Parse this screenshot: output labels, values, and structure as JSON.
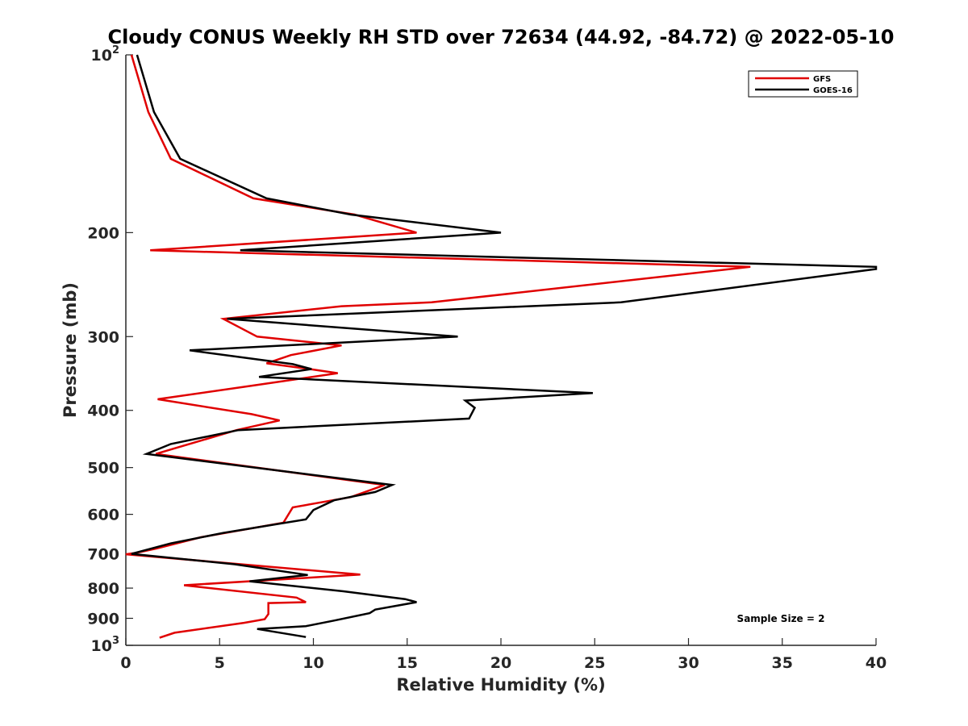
{
  "chart_data": {
    "type": "line",
    "title": "Cloudy CONUS Weekly RH STD over 72634 (44.92, -84.72) @ 2022-05-10",
    "xlabel": "Relative Humidity (%)",
    "ylabel": "Pressure (mb)",
    "xlim": [
      0,
      40
    ],
    "ylim": [
      100,
      1000
    ],
    "y_scale": "log",
    "y_reversed": true,
    "grid": false,
    "legend_position": "top-right",
    "x_ticks": [
      0,
      5,
      10,
      15,
      20,
      25,
      30,
      35,
      40
    ],
    "x_tick_labels": [
      "0",
      "5",
      "10",
      "15",
      "20",
      "25",
      "30",
      "35",
      "40"
    ],
    "y_ticks": [
      100,
      200,
      300,
      400,
      500,
      600,
      700,
      800,
      900,
      1000
    ],
    "y_tick_labels": [
      {
        "base": "10",
        "exp": "2"
      },
      {
        "base": "200",
        "exp": ""
      },
      {
        "base": "300",
        "exp": ""
      },
      {
        "base": "400",
        "exp": ""
      },
      {
        "base": "500",
        "exp": ""
      },
      {
        "base": "600",
        "exp": ""
      },
      {
        "base": "700",
        "exp": ""
      },
      {
        "base": "800",
        "exp": ""
      },
      {
        "base": "900",
        "exp": ""
      },
      {
        "base": "10",
        "exp": "3"
      }
    ],
    "annotation": "Sample Size = 2",
    "series": [
      {
        "name": "GFS",
        "color": "#e00000",
        "points": [
          [
            0.3,
            100
          ],
          [
            1.2,
            125
          ],
          [
            2.4,
            150
          ],
          [
            6.8,
            175
          ],
          [
            12.2,
            186.4
          ],
          [
            15.5,
            200
          ],
          [
            1.3,
            214.3
          ],
          [
            33.3,
            228.6
          ],
          [
            16.3,
            262.5
          ],
          [
            11.5,
            266.5
          ],
          [
            5.2,
            280
          ],
          [
            7.0,
            300
          ],
          [
            11.5,
            310.5
          ],
          [
            8.8,
            322.5
          ],
          [
            7.5,
            333
          ],
          [
            9.8,
            340.5
          ],
          [
            11.3,
            346
          ],
          [
            6.8,
            363
          ],
          [
            1.7,
            383
          ],
          [
            6.7,
            406
          ],
          [
            8.2,
            416
          ],
          [
            5.9,
            432
          ],
          [
            1.6,
            474
          ],
          [
            13.8,
            535
          ],
          [
            12.0,
            561
          ],
          [
            8.9,
            584
          ],
          [
            8.4,
            620
          ],
          [
            4.0,
            656
          ],
          [
            1.6,
            686
          ],
          [
            0.6,
            697
          ],
          [
            0,
            701
          ],
          [
            12.5,
            759
          ],
          [
            3.1,
            791
          ],
          [
            9.1,
            830
          ],
          [
            9.6,
            845
          ],
          [
            7.6,
            848
          ],
          [
            7.6,
            885
          ],
          [
            7.4,
            903
          ],
          [
            6.3,
            916
          ],
          [
            2.6,
            952
          ],
          [
            1.8,
            971
          ]
        ]
      },
      {
        "name": "GOES-16",
        "color": "#000000",
        "points": [
          [
            0.6,
            100
          ],
          [
            1.5,
            125
          ],
          [
            2.9,
            150
          ],
          [
            7.5,
            175
          ],
          [
            12.0,
            186.4
          ],
          [
            20.0,
            200
          ],
          [
            6.1,
            214.3
          ],
          [
            40.0,
            228.6
          ],
          [
            40.0,
            230.5
          ],
          [
            26.4,
            262.5
          ],
          [
            5.4,
            280
          ],
          [
            17.7,
            300
          ],
          [
            3.4,
            316.5
          ],
          [
            8.9,
            334
          ],
          [
            9.9,
            340.5
          ],
          [
            7.1,
            351
          ],
          [
            24.9,
            374
          ],
          [
            18.1,
            385
          ],
          [
            18.6,
            396
          ],
          [
            18.3,
            413
          ],
          [
            6.0,
            432
          ],
          [
            2.4,
            456
          ],
          [
            1.1,
            474
          ],
          [
            14.2,
            535
          ],
          [
            13.3,
            550
          ],
          [
            11.1,
            568
          ],
          [
            10.0,
            590
          ],
          [
            9.6,
            612
          ],
          [
            5.2,
            645
          ],
          [
            2.4,
            672
          ],
          [
            0.3,
            700
          ],
          [
            5.8,
            729
          ],
          [
            9.7,
            760
          ],
          [
            6.6,
            779
          ],
          [
            11.6,
            810
          ],
          [
            14.9,
            835
          ],
          [
            15.5,
            845
          ],
          [
            13.3,
            870
          ],
          [
            13.0,
            882
          ],
          [
            11.1,
            908
          ],
          [
            9.6,
            928
          ],
          [
            7.0,
            938
          ],
          [
            9.6,
            968
          ]
        ]
      }
    ]
  }
}
